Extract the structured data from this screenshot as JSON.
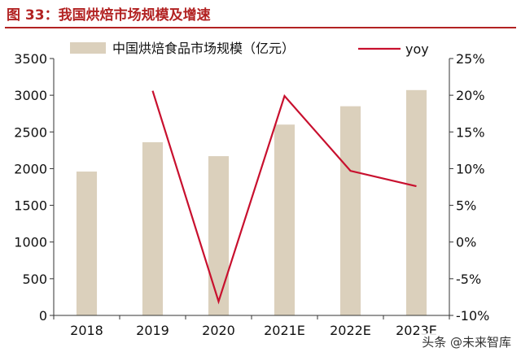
{
  "title": "图 33：我国烘焙市场规模及增速",
  "watermark": "头条 @未来智库",
  "chart_data": {
    "type": "bar",
    "categories": [
      "2018",
      "2019",
      "2020",
      "2021E",
      "2022E",
      "2023E"
    ],
    "series": [
      {
        "name": "中国烘焙食品市场规模（亿元）",
        "type": "bar",
        "axis": "left",
        "color": "#dbd0bc",
        "values": [
          1960,
          2360,
          2170,
          2600,
          2850,
          3070
        ]
      },
      {
        "name": "yoy",
        "type": "line",
        "axis": "right",
        "color": "#c8102e",
        "values": [
          null,
          20.6,
          -8.1,
          19.9,
          9.7,
          7.6
        ]
      }
    ],
    "left_axis": {
      "min": 0,
      "max": 3500,
      "step": 500,
      "ticks": [
        "0",
        "500",
        "1000",
        "1500",
        "2000",
        "2500",
        "3000",
        "3500"
      ]
    },
    "right_axis": {
      "min": -10,
      "max": 25,
      "step": 5,
      "ticks": [
        "-10%",
        "-5%",
        "0%",
        "5%",
        "10%",
        "15%",
        "20%",
        "25%"
      ]
    },
    "grid": false,
    "legend_position": "top"
  }
}
